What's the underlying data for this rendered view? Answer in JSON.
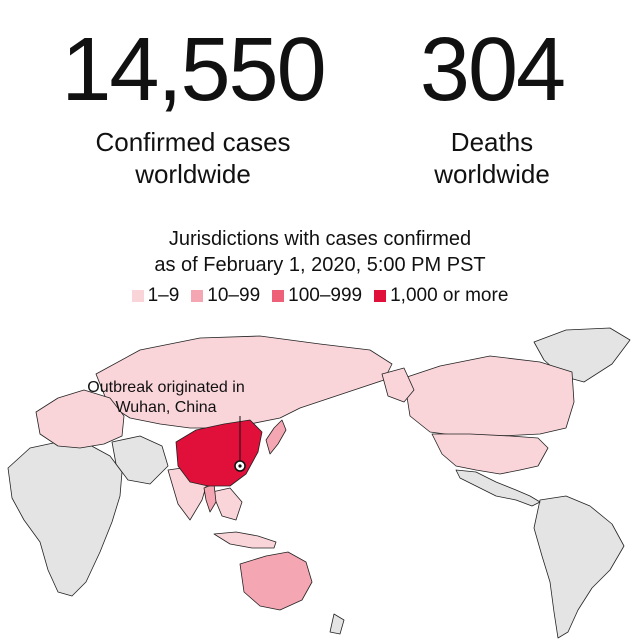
{
  "stats": {
    "cases_number": "14,550",
    "cases_label_1": "Confirmed cases",
    "cases_label_2": "worldwide",
    "deaths_number": "304",
    "deaths_label_1": "Deaths",
    "deaths_label_2": "worldwide"
  },
  "subtitle": {
    "line1": "Jurisdictions with cases confirmed",
    "line2": "as of February 1, 2020, 5:00 PM PST"
  },
  "legend": [
    {
      "label": "1–9",
      "color": "#f9d5da"
    },
    {
      "label": "10–99",
      "color": "#f5a6b3"
    },
    {
      "label": "100–999",
      "color": "#ee5f78"
    },
    {
      "label": "1,000 or more",
      "color": "#e0103a"
    }
  ],
  "map": {
    "colors": {
      "no_cases": "#e4e4e4",
      "ocean": "#ffffff",
      "border": "#222222"
    },
    "callout_line1": "Outbreak originated in",
    "callout_line2": "Wuhan, China",
    "regions": [
      {
        "name": "China",
        "level": "1,000 or more"
      },
      {
        "name": "Australia",
        "level": "10–99"
      },
      {
        "name": "Thailand",
        "level": "10–99"
      },
      {
        "name": "Japan",
        "level": "10–99"
      },
      {
        "name": "Singapore",
        "level": "10–99"
      },
      {
        "name": "Russia",
        "level": "1–9"
      },
      {
        "name": "Canada",
        "level": "1–9"
      },
      {
        "name": "United States",
        "level": "1–9"
      },
      {
        "name": "India",
        "level": "1–9"
      }
    ]
  }
}
